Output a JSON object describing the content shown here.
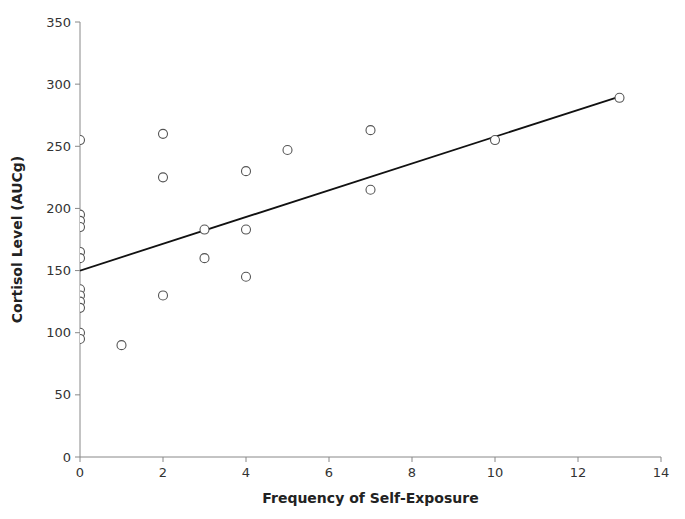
{
  "chart_data": {
    "type": "scatter",
    "xlabel": "Frequency of Self-Exposure",
    "ylabel": "Cortisol Level (AUCg)",
    "series": [
      {
        "type": "scatter",
        "marker": "hollow",
        "color": "#555555",
        "x": [
          0,
          0,
          0,
          0,
          0,
          0,
          0,
          0,
          0,
          0,
          0,
          0,
          1,
          2,
          2,
          2,
          3,
          3,
          4,
          4,
          4,
          5,
          7,
          7,
          10,
          13
        ],
        "values": [
          255,
          195,
          190,
          185,
          165,
          160,
          135,
          130,
          125,
          120,
          100,
          95,
          90,
          260,
          225,
          130,
          183,
          160,
          230,
          183,
          145,
          247,
          263,
          215,
          255,
          289
        ]
      },
      {
        "type": "line",
        "color": "#111111",
        "x": [
          0,
          13
        ],
        "values": [
          150,
          290
        ]
      }
    ],
    "xlim": [
      0,
      14
    ],
    "ylim": [
      0,
      350
    ],
    "xticks": [
      0,
      2,
      4,
      6,
      8,
      10,
      12,
      14
    ],
    "yticks": [
      0,
      50,
      100,
      150,
      200,
      250,
      300,
      350
    ],
    "grid": false
  }
}
